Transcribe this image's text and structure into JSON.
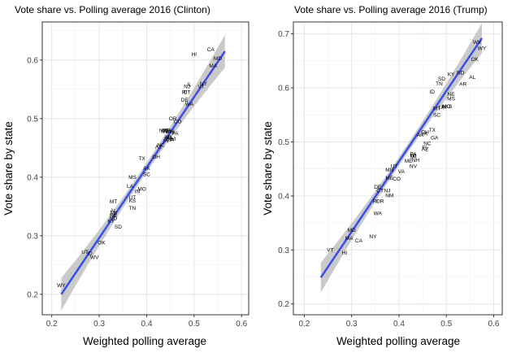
{
  "chart_data": [
    {
      "type": "scatter",
      "title": "Vote share vs. Polling average 2016 (Clinton)",
      "xlabel": "Weighted polling average",
      "ylabel": "Vote share by state",
      "xlim": [
        0.18,
        0.615
      ],
      "ylim": [
        0.165,
        0.665
      ],
      "xticks": [
        "0.2",
        "0.3",
        "0.4",
        "0.5",
        "0.6"
      ],
      "yticks": [
        "0.2",
        "0.3",
        "0.4",
        "0.5",
        "0.6"
      ],
      "grid": true,
      "fit_line": {
        "x": [
          0.22,
          0.565
        ],
        "y": [
          0.2,
          0.615
        ],
        "color": "#3a4ee8",
        "band_color": "#bdbdbd"
      },
      "points": [
        {
          "label": "CA",
          "x": 0.535,
          "y": 0.618
        },
        {
          "label": "MD",
          "x": 0.55,
          "y": 0.603
        },
        {
          "label": "HI",
          "x": 0.5,
          "y": 0.61
        },
        {
          "label": "MA",
          "x": 0.54,
          "y": 0.59
        },
        {
          "label": "NJ",
          "x": 0.485,
          "y": 0.555
        },
        {
          "label": "IL",
          "x": 0.49,
          "y": 0.558
        },
        {
          "label": "NY",
          "x": 0.52,
          "y": 0.56
        },
        {
          "label": "VT",
          "x": 0.515,
          "y": 0.555
        },
        {
          "label": "RI",
          "x": 0.48,
          "y": 0.545
        },
        {
          "label": "CT",
          "x": 0.485,
          "y": 0.545
        },
        {
          "label": "DE",
          "x": 0.48,
          "y": 0.532
        },
        {
          "label": "WA",
          "x": 0.49,
          "y": 0.525
        },
        {
          "label": "OR",
          "x": 0.455,
          "y": 0.5
        },
        {
          "label": "CO",
          "x": 0.465,
          "y": 0.495
        },
        {
          "label": "NM",
          "x": 0.435,
          "y": 0.48
        },
        {
          "label": "VA",
          "x": 0.445,
          "y": 0.48
        },
        {
          "label": "NV",
          "x": 0.438,
          "y": 0.478
        },
        {
          "label": "MN",
          "x": 0.45,
          "y": 0.478
        },
        {
          "label": "ME",
          "x": 0.44,
          "y": 0.48
        },
        {
          "label": "NH",
          "x": 0.445,
          "y": 0.465
        },
        {
          "label": "PA",
          "x": 0.46,
          "y": 0.475
        },
        {
          "label": "MI",
          "x": 0.445,
          "y": 0.468
        },
        {
          "label": "WI",
          "x": 0.455,
          "y": 0.465
        },
        {
          "label": "FL",
          "x": 0.45,
          "y": 0.468
        },
        {
          "label": "NC",
          "x": 0.43,
          "y": 0.455
        },
        {
          "label": "AZ",
          "x": 0.425,
          "y": 0.452
        },
        {
          "label": "IA",
          "x": 0.44,
          "y": 0.462
        },
        {
          "label": "GA",
          "x": 0.45,
          "y": 0.464
        },
        {
          "label": "TX",
          "x": 0.39,
          "y": 0.432
        },
        {
          "label": "OH",
          "x": 0.42,
          "y": 0.435
        },
        {
          "label": "SC",
          "x": 0.4,
          "y": 0.405
        },
        {
          "label": "AK",
          "x": 0.4,
          "y": 0.415
        },
        {
          "label": "MS",
          "x": 0.37,
          "y": 0.4
        },
        {
          "label": "LA",
          "x": 0.365,
          "y": 0.385
        },
        {
          "label": "MO",
          "x": 0.39,
          "y": 0.38
        },
        {
          "label": "IN",
          "x": 0.38,
          "y": 0.376
        },
        {
          "label": "UT",
          "x": 0.37,
          "y": 0.365
        },
        {
          "label": "KS",
          "x": 0.37,
          "y": 0.36
        },
        {
          "label": "MT",
          "x": 0.33,
          "y": 0.358
        },
        {
          "label": "TN",
          "x": 0.37,
          "y": 0.347
        },
        {
          "label": "AL",
          "x": 0.33,
          "y": 0.343
        },
        {
          "label": "NE",
          "x": 0.33,
          "y": 0.335
        },
        {
          "label": "AR",
          "x": 0.33,
          "y": 0.338
        },
        {
          "label": "ND",
          "x": 0.33,
          "y": 0.33
        },
        {
          "label": "KY",
          "x": 0.325,
          "y": 0.325
        },
        {
          "label": "SD",
          "x": 0.34,
          "y": 0.315
        },
        {
          "label": "OK",
          "x": 0.305,
          "y": 0.288
        },
        {
          "label": "UT",
          "x": 0.27,
          "y": 0.272
        },
        {
          "label": "ID",
          "x": 0.28,
          "y": 0.27
        },
        {
          "label": "WV",
          "x": 0.29,
          "y": 0.263
        },
        {
          "label": "WY",
          "x": 0.22,
          "y": 0.215
        }
      ]
    },
    {
      "type": "scatter",
      "title": "Vote share vs. Polling average 2016 (Trump)",
      "xlabel": "Weighted polling average",
      "ylabel": "Vote share by state",
      "xlim": [
        0.177,
        0.618
      ],
      "ylim": [
        0.18,
        0.722
      ],
      "xticks": [
        "0.2",
        "0.3",
        "0.4",
        "0.5",
        "0.6"
      ],
      "yticks": [
        "0.2",
        "0.3",
        "0.4",
        "0.5",
        "0.6",
        "0.7"
      ],
      "grid": true,
      "fit_line": {
        "x": [
          0.235,
          0.575
        ],
        "y": [
          0.249,
          0.692
        ],
        "color": "#3a4ee8",
        "band_color": "#bdbdbd"
      },
      "points": [
        {
          "label": "WV",
          "x": 0.565,
          "y": 0.685
        },
        {
          "label": "WY",
          "x": 0.575,
          "y": 0.673
        },
        {
          "label": "OK",
          "x": 0.56,
          "y": 0.653
        },
        {
          "label": "KY",
          "x": 0.51,
          "y": 0.625
        },
        {
          "label": "ND",
          "x": 0.53,
          "y": 0.628
        },
        {
          "label": "SD",
          "x": 0.49,
          "y": 0.617
        },
        {
          "label": "TN",
          "x": 0.485,
          "y": 0.608
        },
        {
          "label": "AR",
          "x": 0.535,
          "y": 0.607
        },
        {
          "label": "AL",
          "x": 0.555,
          "y": 0.62
        },
        {
          "label": "ID",
          "x": 0.47,
          "y": 0.593
        },
        {
          "label": "NE",
          "x": 0.51,
          "y": 0.588
        },
        {
          "label": "MS",
          "x": 0.51,
          "y": 0.58
        },
        {
          "label": "KS",
          "x": 0.505,
          "y": 0.566
        },
        {
          "label": "MO",
          "x": 0.5,
          "y": 0.566
        },
        {
          "label": "IN",
          "x": 0.495,
          "y": 0.565
        },
        {
          "label": "SC",
          "x": 0.48,
          "y": 0.55
        },
        {
          "label": "LA",
          "x": 0.49,
          "y": 0.565
        },
        {
          "label": "MT",
          "x": 0.48,
          "y": 0.562
        },
        {
          "label": "TX",
          "x": 0.47,
          "y": 0.522
        },
        {
          "label": "GA",
          "x": 0.475,
          "y": 0.508
        },
        {
          "label": "AK",
          "x": 0.445,
          "y": 0.513
        },
        {
          "label": "OH",
          "x": 0.455,
          "y": 0.518
        },
        {
          "label": "IA",
          "x": 0.455,
          "y": 0.515
        },
        {
          "label": "NC",
          "x": 0.46,
          "y": 0.497
        },
        {
          "label": "AZ",
          "x": 0.455,
          "y": 0.487
        },
        {
          "label": "FL",
          "x": 0.455,
          "y": 0.49
        },
        {
          "label": "UT",
          "x": 0.39,
          "y": 0.455
        },
        {
          "label": "ME",
          "x": 0.42,
          "y": 0.465
        },
        {
          "label": "MI",
          "x": 0.43,
          "y": 0.473
        },
        {
          "label": "PA",
          "x": 0.43,
          "y": 0.478
        },
        {
          "label": "WI",
          "x": 0.43,
          "y": 0.475
        },
        {
          "label": "NH",
          "x": 0.435,
          "y": 0.466
        },
        {
          "label": "MN",
          "x": 0.38,
          "y": 0.448
        },
        {
          "label": "VA",
          "x": 0.405,
          "y": 0.445
        },
        {
          "label": "NV",
          "x": 0.43,
          "y": 0.455
        },
        {
          "label": "ME",
          "x": 0.38,
          "y": 0.433
        },
        {
          "label": "CO",
          "x": 0.395,
          "y": 0.432
        },
        {
          "label": "DE",
          "x": 0.355,
          "y": 0.417
        },
        {
          "label": "CT",
          "x": 0.36,
          "y": 0.41
        },
        {
          "label": "NJ",
          "x": 0.375,
          "y": 0.41
        },
        {
          "label": "NM",
          "x": 0.38,
          "y": 0.401
        },
        {
          "label": "RI",
          "x": 0.35,
          "y": 0.39
        },
        {
          "label": "OR",
          "x": 0.36,
          "y": 0.39
        },
        {
          "label": "WA",
          "x": 0.355,
          "y": 0.368
        },
        {
          "label": "MD",
          "x": 0.3,
          "y": 0.337
        },
        {
          "label": "MA",
          "x": 0.295,
          "y": 0.322
        },
        {
          "label": "CA",
          "x": 0.315,
          "y": 0.317
        },
        {
          "label": "NY",
          "x": 0.345,
          "y": 0.325
        },
        {
          "label": "VT",
          "x": 0.255,
          "y": 0.3
        },
        {
          "label": "HI",
          "x": 0.285,
          "y": 0.295
        }
      ]
    }
  ]
}
